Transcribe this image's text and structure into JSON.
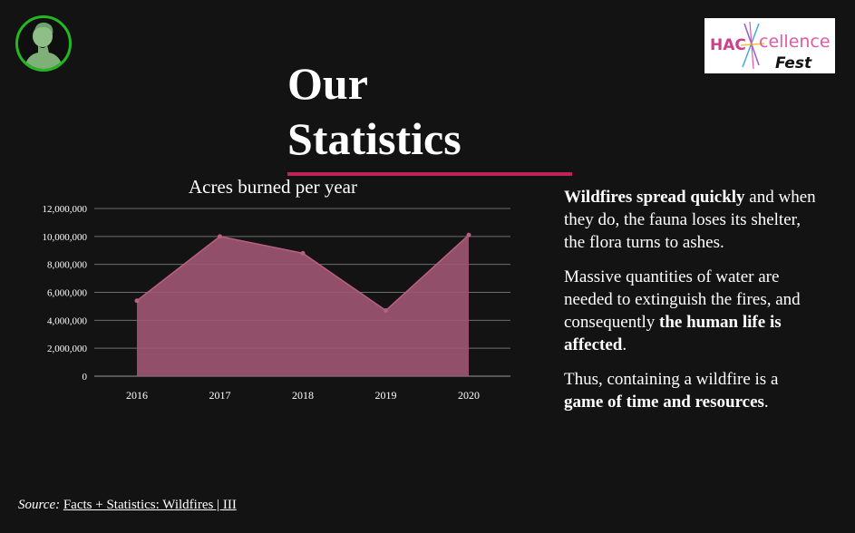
{
  "slide": {
    "title_line1": "Our",
    "title_line2": "Statistics",
    "accent_color": "#c2215a",
    "logo_ring_color": "#23b81f"
  },
  "brand": {
    "part1": "HAC",
    "part2": "cellence",
    "part3": "Fest"
  },
  "chart_data": {
    "type": "area",
    "title": "Acres burned per year",
    "categories": [
      "2016",
      "2017",
      "2018",
      "2019",
      "2020"
    ],
    "values": [
      5400000,
      10000000,
      8800000,
      4700000,
      10100000
    ],
    "ylim": [
      0,
      12000000
    ],
    "yticks": [
      "0",
      "2,000,000",
      "4,000,000",
      "6,000,000",
      "8,000,000",
      "10,000,000",
      "12,000,000"
    ],
    "xlabel": "",
    "ylabel": "",
    "grid": true,
    "fill_color": "#9e5773",
    "line_color": "#b8607f"
  },
  "text": {
    "p1_bold": "Wildfires spread quickly",
    "p1_rest": " and when they do, the fauna loses its shelter, the flora turns to ashes.",
    "p2_start": "Massive quantities of water are needed to extinguish the fires, and consequently ",
    "p2_bold": "the human life is affected",
    "p2_end": ".",
    "p3_start": "Thus, containing a wildfire is a ",
    "p3_bold": "game of time and resources",
    "p3_end": "."
  },
  "source": {
    "label": "Source:",
    "link_text": "Facts + Statistics: Wildfires | III"
  }
}
